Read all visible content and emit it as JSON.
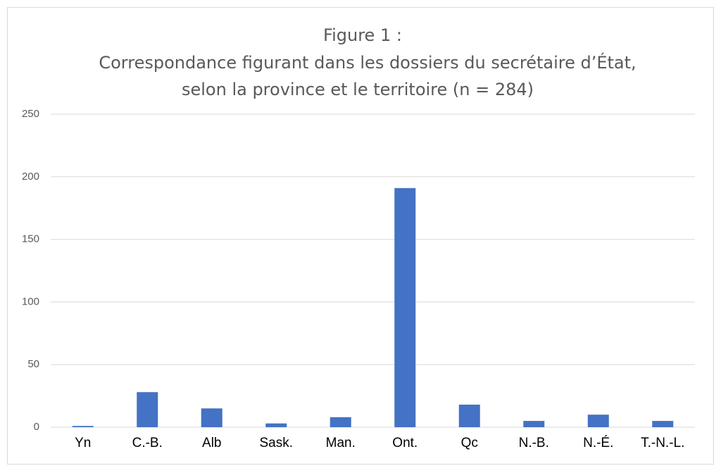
{
  "chart_data": {
    "type": "bar",
    "title": [
      "Figure 1 :",
      "Correspondance figurant dans les dossiers du secrétaire d’État,",
      "selon la province et le territoire (n = 284)"
    ],
    "categories": [
      "Yn",
      "C.-B.",
      "Alb",
      "Sask.",
      "Man.",
      "Ont.",
      "Qc",
      "N.-B.",
      "N.-É.",
      "T.-N.-L."
    ],
    "values": [
      1,
      28,
      15,
      3,
      8,
      191,
      18,
      5,
      10,
      5
    ],
    "color": "#4472c4",
    "ylim": [
      0,
      250
    ],
    "yticks": [
      0,
      50,
      100,
      150,
      200,
      250
    ],
    "grid": true
  }
}
